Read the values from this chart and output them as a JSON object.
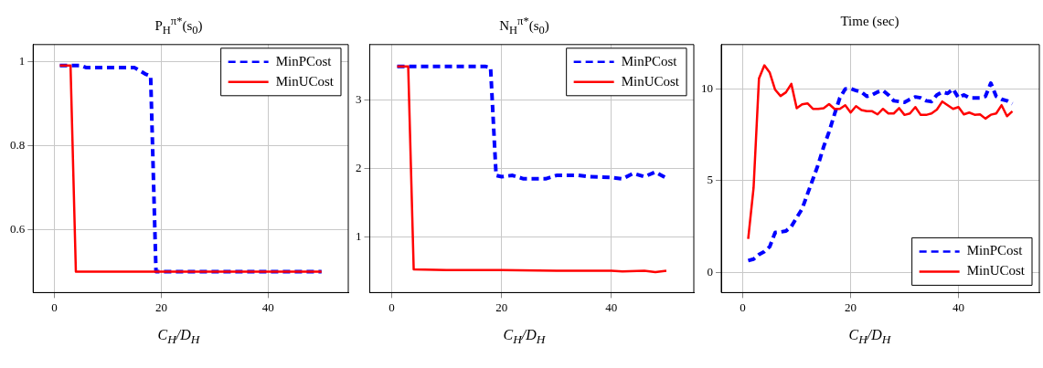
{
  "chart_data": [
    {
      "type": "line",
      "title": "P$_{H}$$^{π*}$(s$_{0}$)",
      "xlabel": "C$_{H}$/D$_{H}$",
      "xlim": [
        -4,
        55
      ],
      "xticks": [
        0,
        20,
        40
      ],
      "ylim": [
        0.45,
        1.04
      ],
      "yticks": [
        0.6,
        0.8,
        1
      ],
      "grid": true,
      "legend": "top right",
      "marker": "none",
      "series": [
        {
          "name": "MinPCost",
          "color": "#0000ff",
          "line_style": "dashed",
          "x": [
            1,
            5,
            6,
            15,
            17,
            18,
            19,
            50
          ],
          "values": [
            0.99,
            0.99,
            0.985,
            0.985,
            0.97,
            0.965,
            0.5,
            0.5
          ]
        },
        {
          "name": "MinUCost",
          "color": "#ff0000",
          "line_style": "solid",
          "x": [
            1,
            3,
            4,
            50
          ],
          "values": [
            0.99,
            0.99,
            0.5,
            0.5
          ]
        }
      ]
    },
    {
      "type": "line",
      "title": "N$_{H}$$^{π*}$(s$_{0}$)",
      "xlabel": "C$_{H}$/D$_{H}$",
      "xlim": [
        -4,
        55
      ],
      "xticks": [
        0,
        20,
        40
      ],
      "ylim": [
        0.18,
        3.82
      ],
      "yticks": [
        1,
        2,
        3
      ],
      "grid": true,
      "legend": "top right",
      "marker": "none",
      "series": [
        {
          "name": "MinPCost",
          "color": "#0000ff",
          "line_style": "dashed",
          "x": [
            1,
            17,
            18,
            19,
            20,
            22,
            24,
            28,
            30,
            34,
            36,
            40,
            42,
            44,
            46,
            48,
            50
          ],
          "values": [
            3.5,
            3.5,
            3.48,
            1.9,
            1.88,
            1.9,
            1.85,
            1.85,
            1.9,
            1.9,
            1.88,
            1.87,
            1.85,
            1.93,
            1.88,
            1.95,
            1.86
          ]
        },
        {
          "name": "MinUCost",
          "color": "#ff0000",
          "line_style": "solid",
          "x": [
            1,
            3,
            4,
            10,
            20,
            30,
            40,
            42,
            46,
            48,
            50
          ],
          "values": [
            3.5,
            3.5,
            0.52,
            0.51,
            0.51,
            0.5,
            0.5,
            0.49,
            0.5,
            0.48,
            0.5
          ]
        }
      ]
    },
    {
      "type": "line",
      "title": "Time (sec)",
      "xlabel": "C$_{H}$/D$_{H}$",
      "xlim": [
        -4,
        55
      ],
      "xticks": [
        0,
        20,
        40
      ],
      "ylim": [
        -1.1,
        12.4
      ],
      "yticks": [
        0,
        5,
        10
      ],
      "grid": true,
      "legend": "bottom right",
      "marker": "none",
      "series": [
        {
          "name": "MinPCost",
          "color": "#0000ff",
          "line_style": "dashed",
          "x": [
            1,
            2,
            3,
            4,
            5,
            6,
            7,
            8,
            9,
            10,
            11,
            12,
            13,
            14,
            15,
            16,
            17,
            18,
            19,
            20,
            21,
            22,
            23,
            24,
            25,
            26,
            27,
            28,
            29,
            30,
            31,
            32,
            33,
            34,
            35,
            36,
            37,
            38,
            39,
            40,
            41,
            42,
            43,
            44,
            45,
            46,
            47,
            48,
            49,
            50
          ],
          "values": [
            0.64,
            0.72,
            0.97,
            1.13,
            1.4,
            2.17,
            2.2,
            2.25,
            2.5,
            2.98,
            3.46,
            4.27,
            5.07,
            5.88,
            6.84,
            7.65,
            8.6,
            9.5,
            9.98,
            10.0,
            9.9,
            9.82,
            9.58,
            9.66,
            9.82,
            9.9,
            9.66,
            9.34,
            9.3,
            9.26,
            9.42,
            9.55,
            9.5,
            9.34,
            9.3,
            9.66,
            9.82,
            9.74,
            9.98,
            9.5,
            9.66,
            9.5,
            9.5,
            9.5,
            9.58,
            10.3,
            9.58,
            9.42,
            9.34,
            9.18
          ]
        },
        {
          "name": "MinUCost",
          "color": "#ff0000",
          "line_style": "solid",
          "x": [
            1,
            2,
            3,
            4,
            5,
            6,
            7,
            8,
            9,
            10,
            11,
            12,
            13,
            14,
            15,
            16,
            17,
            18,
            19,
            20,
            21,
            22,
            23,
            24,
            25,
            26,
            27,
            28,
            29,
            30,
            31,
            32,
            33,
            34,
            35,
            36,
            37,
            38,
            39,
            40,
            41,
            42,
            43,
            44,
            45,
            46,
            47,
            48,
            49,
            50
          ],
          "values": [
            1.82,
            4.6,
            10.55,
            11.27,
            10.87,
            9.94,
            9.6,
            9.8,
            10.26,
            8.94,
            9.15,
            9.2,
            8.9,
            8.9,
            8.94,
            9.16,
            8.9,
            8.9,
            9.1,
            8.7,
            9.05,
            8.84,
            8.77,
            8.77,
            8.6,
            8.9,
            8.65,
            8.65,
            8.94,
            8.57,
            8.65,
            9.0,
            8.57,
            8.57,
            8.65,
            8.86,
            9.3,
            9.1,
            8.9,
            9.0,
            8.6,
            8.7,
            8.58,
            8.6,
            8.37,
            8.58,
            8.65,
            9.1,
            8.5,
            8.77
          ]
        }
      ]
    }
  ]
}
